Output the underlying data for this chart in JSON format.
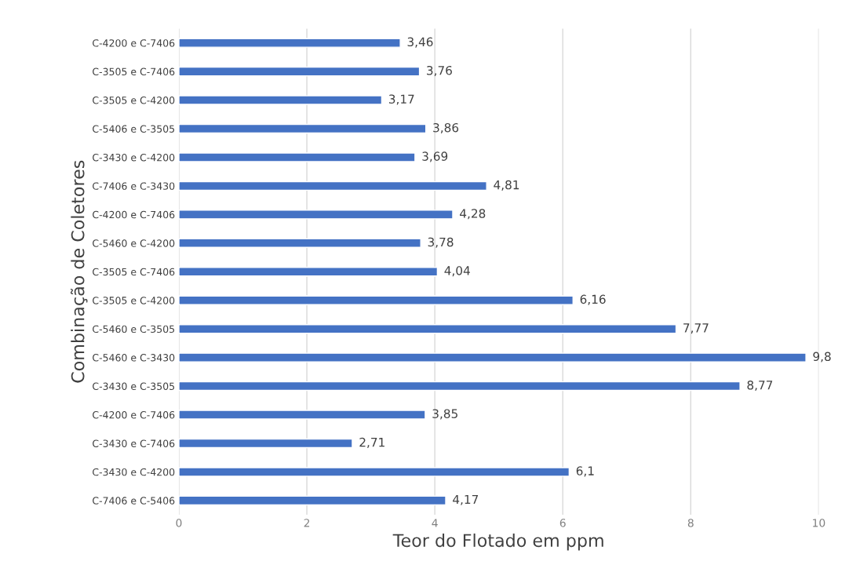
{
  "chart_data": {
    "type": "bar",
    "orientation": "horizontal",
    "xlabel": "Teor do Flotado em ppm",
    "ylabel": "Combinação de Coletores",
    "categories": [
      "C-4200 e C-7406",
      "C-3505 e C-7406",
      "C-3505 e C-4200",
      "C-5406 e C-3505",
      "C-3430 e C-4200",
      "C-7406 e C-3430",
      "C-4200 e C-7406",
      "C-5460 e C-4200",
      "C-3505 e C-7406",
      "C-3505 e C-4200",
      "C-5460 e C-3505",
      "C-5460 e C-3430",
      "C-3430 e C-3505",
      "C-4200 e C-7406",
      "C-3430 e C-7406",
      "C-3430 e C-4200",
      "C-7406 e C-5406"
    ],
    "values": [
      3.46,
      3.76,
      3.17,
      3.86,
      3.69,
      4.81,
      4.28,
      3.78,
      4.04,
      6.16,
      7.77,
      9.8,
      8.77,
      3.85,
      2.71,
      6.1,
      4.17
    ],
    "value_labels": [
      "3,46",
      "3,76",
      "3,17",
      "3,86",
      "3,69",
      "4,81",
      "4,28",
      "3,78",
      "4,04",
      "6,16",
      "7,77",
      "9,8",
      "8,77",
      "3,85",
      "2,71",
      "6,1",
      "4,17"
    ],
    "color": "#4472c4",
    "xlim": [
      0,
      10
    ],
    "xticks": [
      0,
      2,
      4,
      6,
      8,
      10
    ],
    "grid": "x",
    "legend": false
  }
}
